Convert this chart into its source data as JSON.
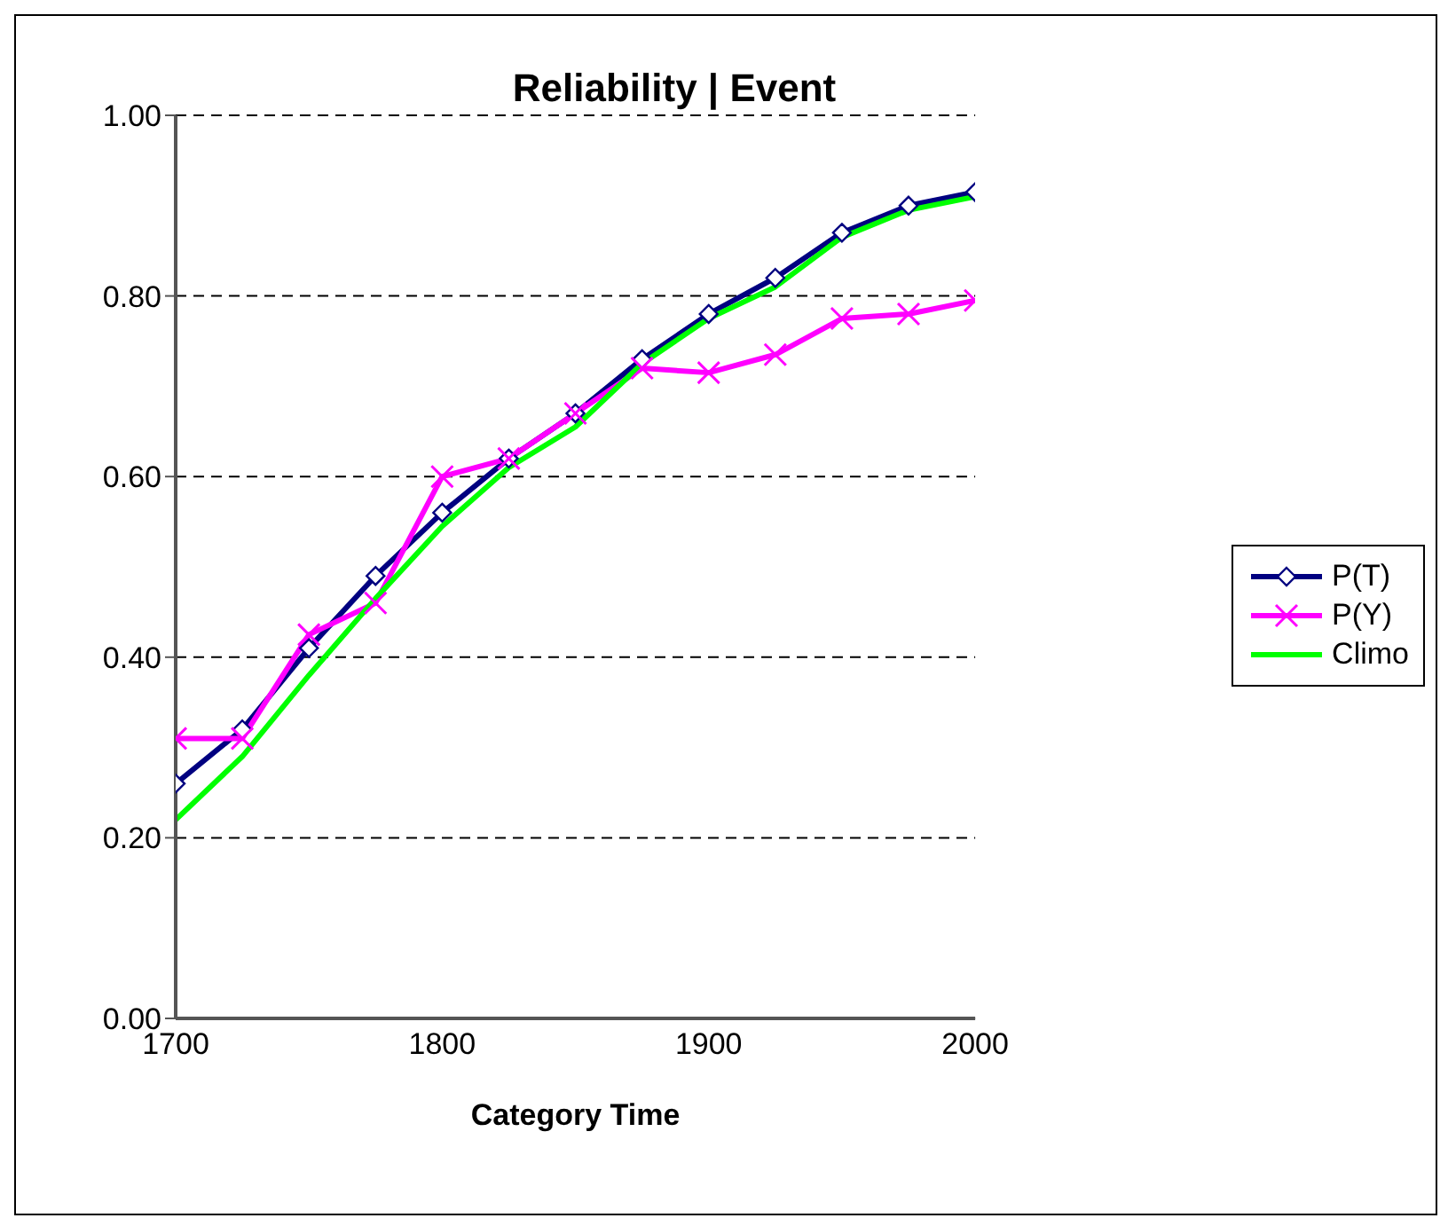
{
  "chart_data": {
    "type": "line",
    "title": "Reliability | Event",
    "xlabel": "Category Time",
    "x": [
      1700,
      1725,
      1750,
      1775,
      1800,
      1825,
      1850,
      1875,
      1900,
      1925,
      1950,
      1975,
      2000
    ],
    "xlim": [
      1700,
      2000
    ],
    "xticks": [
      1700,
      1800,
      1900,
      2000
    ],
    "ylim": [
      0,
      1
    ],
    "yticks": [
      {
        "value": 0,
        "label": "0.00"
      },
      {
        "value": 0.2,
        "label": "0.20"
      },
      {
        "value": 0.4,
        "label": "0.40"
      },
      {
        "value": 0.6,
        "label": "0.60"
      },
      {
        "value": 0.8,
        "label": "0.80"
      },
      {
        "value": 1,
        "label": "1.00"
      }
    ],
    "grid": "y",
    "legend": "right",
    "series": [
      {
        "name": "P(T)",
        "color": "#000080",
        "marker": "diamond",
        "values": [
          0.26,
          0.32,
          0.41,
          0.49,
          0.56,
          0.62,
          0.67,
          0.73,
          0.78,
          0.82,
          0.87,
          0.9,
          0.915
        ]
      },
      {
        "name": "P(Y)",
        "color": "#ff00ff",
        "marker": "cross",
        "values": [
          0.31,
          0.31,
          0.425,
          0.46,
          0.6,
          0.62,
          0.67,
          0.72,
          0.715,
          0.735,
          0.775,
          0.78,
          0.795
        ]
      },
      {
        "name": "Climo",
        "color": "#00ff00",
        "marker": "none",
        "values": [
          0.22,
          0.29,
          0.38,
          0.465,
          0.545,
          0.61,
          0.655,
          0.725,
          0.775,
          0.81,
          0.865,
          0.895,
          0.91
        ]
      }
    ]
  }
}
